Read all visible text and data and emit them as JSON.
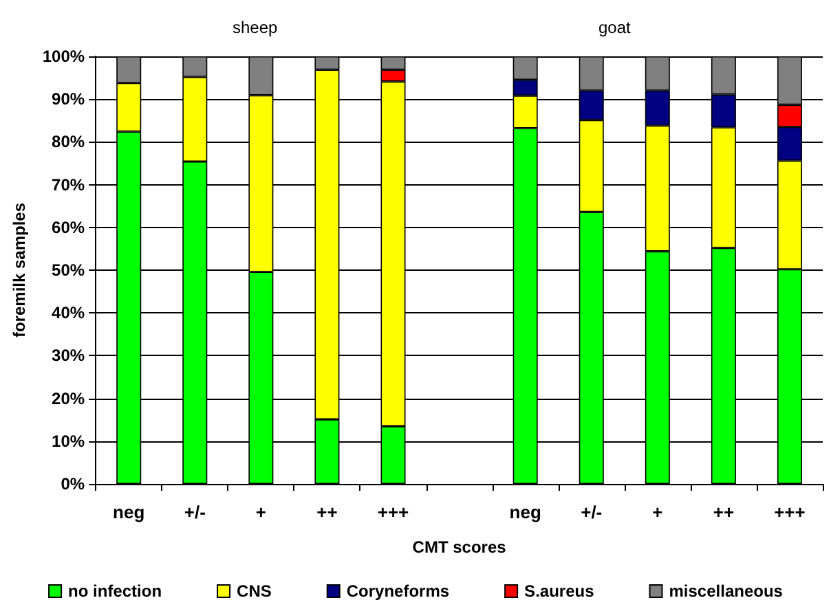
{
  "chart_data": {
    "type": "bar",
    "stacked": true,
    "xlabel": "CMT scores",
    "ylabel": "foremilk samples",
    "annotations": [
      "sheep",
      "goat"
    ],
    "categories": [
      "neg",
      "+/-",
      "+",
      "++",
      "+++",
      null,
      "neg",
      "+/-",
      "+",
      "++",
      "+++"
    ],
    "series": [
      {
        "name": "no infection",
        "color": "#00ff00",
        "values": [
          82.4,
          75.4,
          49.6,
          15.1,
          13.5,
          null,
          83.2,
          63.6,
          54.4,
          55.2,
          50.2
        ]
      },
      {
        "name": "CNS",
        "color": "#ffff00",
        "values": [
          11.4,
          19.8,
          41.3,
          81.8,
          80.6,
          null,
          7.6,
          21.5,
          29.4,
          28.2,
          25.4
        ]
      },
      {
        "name": "Coryneforms",
        "color": "#000080",
        "values": [
          0,
          0,
          0,
          0,
          0,
          null,
          3.7,
          6.9,
          8.2,
          7.7,
          7.9
        ]
      },
      {
        "name": "S.aureus",
        "color": "#ff0000",
        "values": [
          0,
          0,
          0,
          0,
          2.8,
          null,
          0,
          0,
          0,
          0,
          5.2
        ]
      },
      {
        "name": "miscellaneous",
        "color": "#808080",
        "values": [
          6.2,
          4.8,
          9.1,
          3.1,
          3.1,
          null,
          5.5,
          8.0,
          8.0,
          8.9,
          11.3
        ]
      }
    ],
    "ylim": [
      0,
      100
    ],
    "yticks": [
      {
        "value": 0,
        "label": "0%"
      },
      {
        "value": 10,
        "label": "10%"
      },
      {
        "value": 20,
        "label": "20%"
      },
      {
        "value": 30,
        "label": "30%"
      },
      {
        "value": 40,
        "label": "40%"
      },
      {
        "value": 50,
        "label": "50%"
      },
      {
        "value": 60,
        "label": "60%"
      },
      {
        "value": 70,
        "label": "70%"
      },
      {
        "value": 80,
        "label": "80%"
      },
      {
        "value": 90,
        "label": "90%"
      },
      {
        "value": 100,
        "label": "100%"
      }
    ],
    "grid": "y",
    "legend": "bottom"
  }
}
